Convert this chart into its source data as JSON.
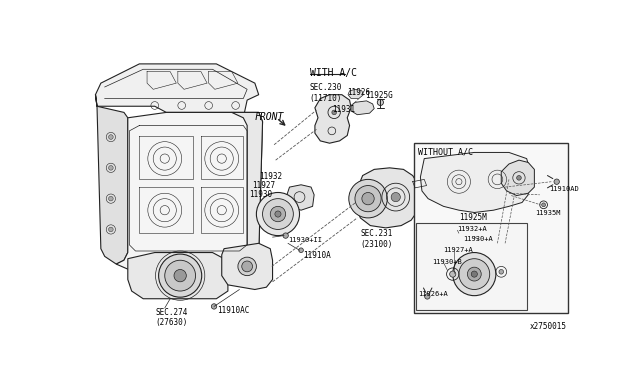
{
  "bg_color": "#ffffff",
  "border_color": "#222222",
  "line_color": "#222222",
  "text_color": "#000000",
  "diagram_id": "x2750015",
  "labels": {
    "front": "FRONT",
    "with_ac": "WITH A/C",
    "without_ac": "WITHOUT A/C",
    "sec_230": "SEC.230\n(11710)",
    "sec_231": "SEC.231\n(23100)",
    "sec_274": "SEC.274\n(27630)",
    "p11926": "11926",
    "p11925G": "11925G",
    "p11931": "11931",
    "p11932": "11932",
    "p11927": "11927",
    "p11930": "11930",
    "p11930II": "11930+II",
    "p11910A": "11910A",
    "p11910AC": "11910AC",
    "p11925M": "11925M",
    "p11932A": "11932+A",
    "p11930A": "11930+A",
    "p11927A": "11927+A",
    "p11930B": "11930+B",
    "p11926A": "11926+A",
    "p11910AD": "11910AD",
    "p11935M": "11935M"
  },
  "fig_width": 6.4,
  "fig_height": 3.72,
  "dpi": 100
}
